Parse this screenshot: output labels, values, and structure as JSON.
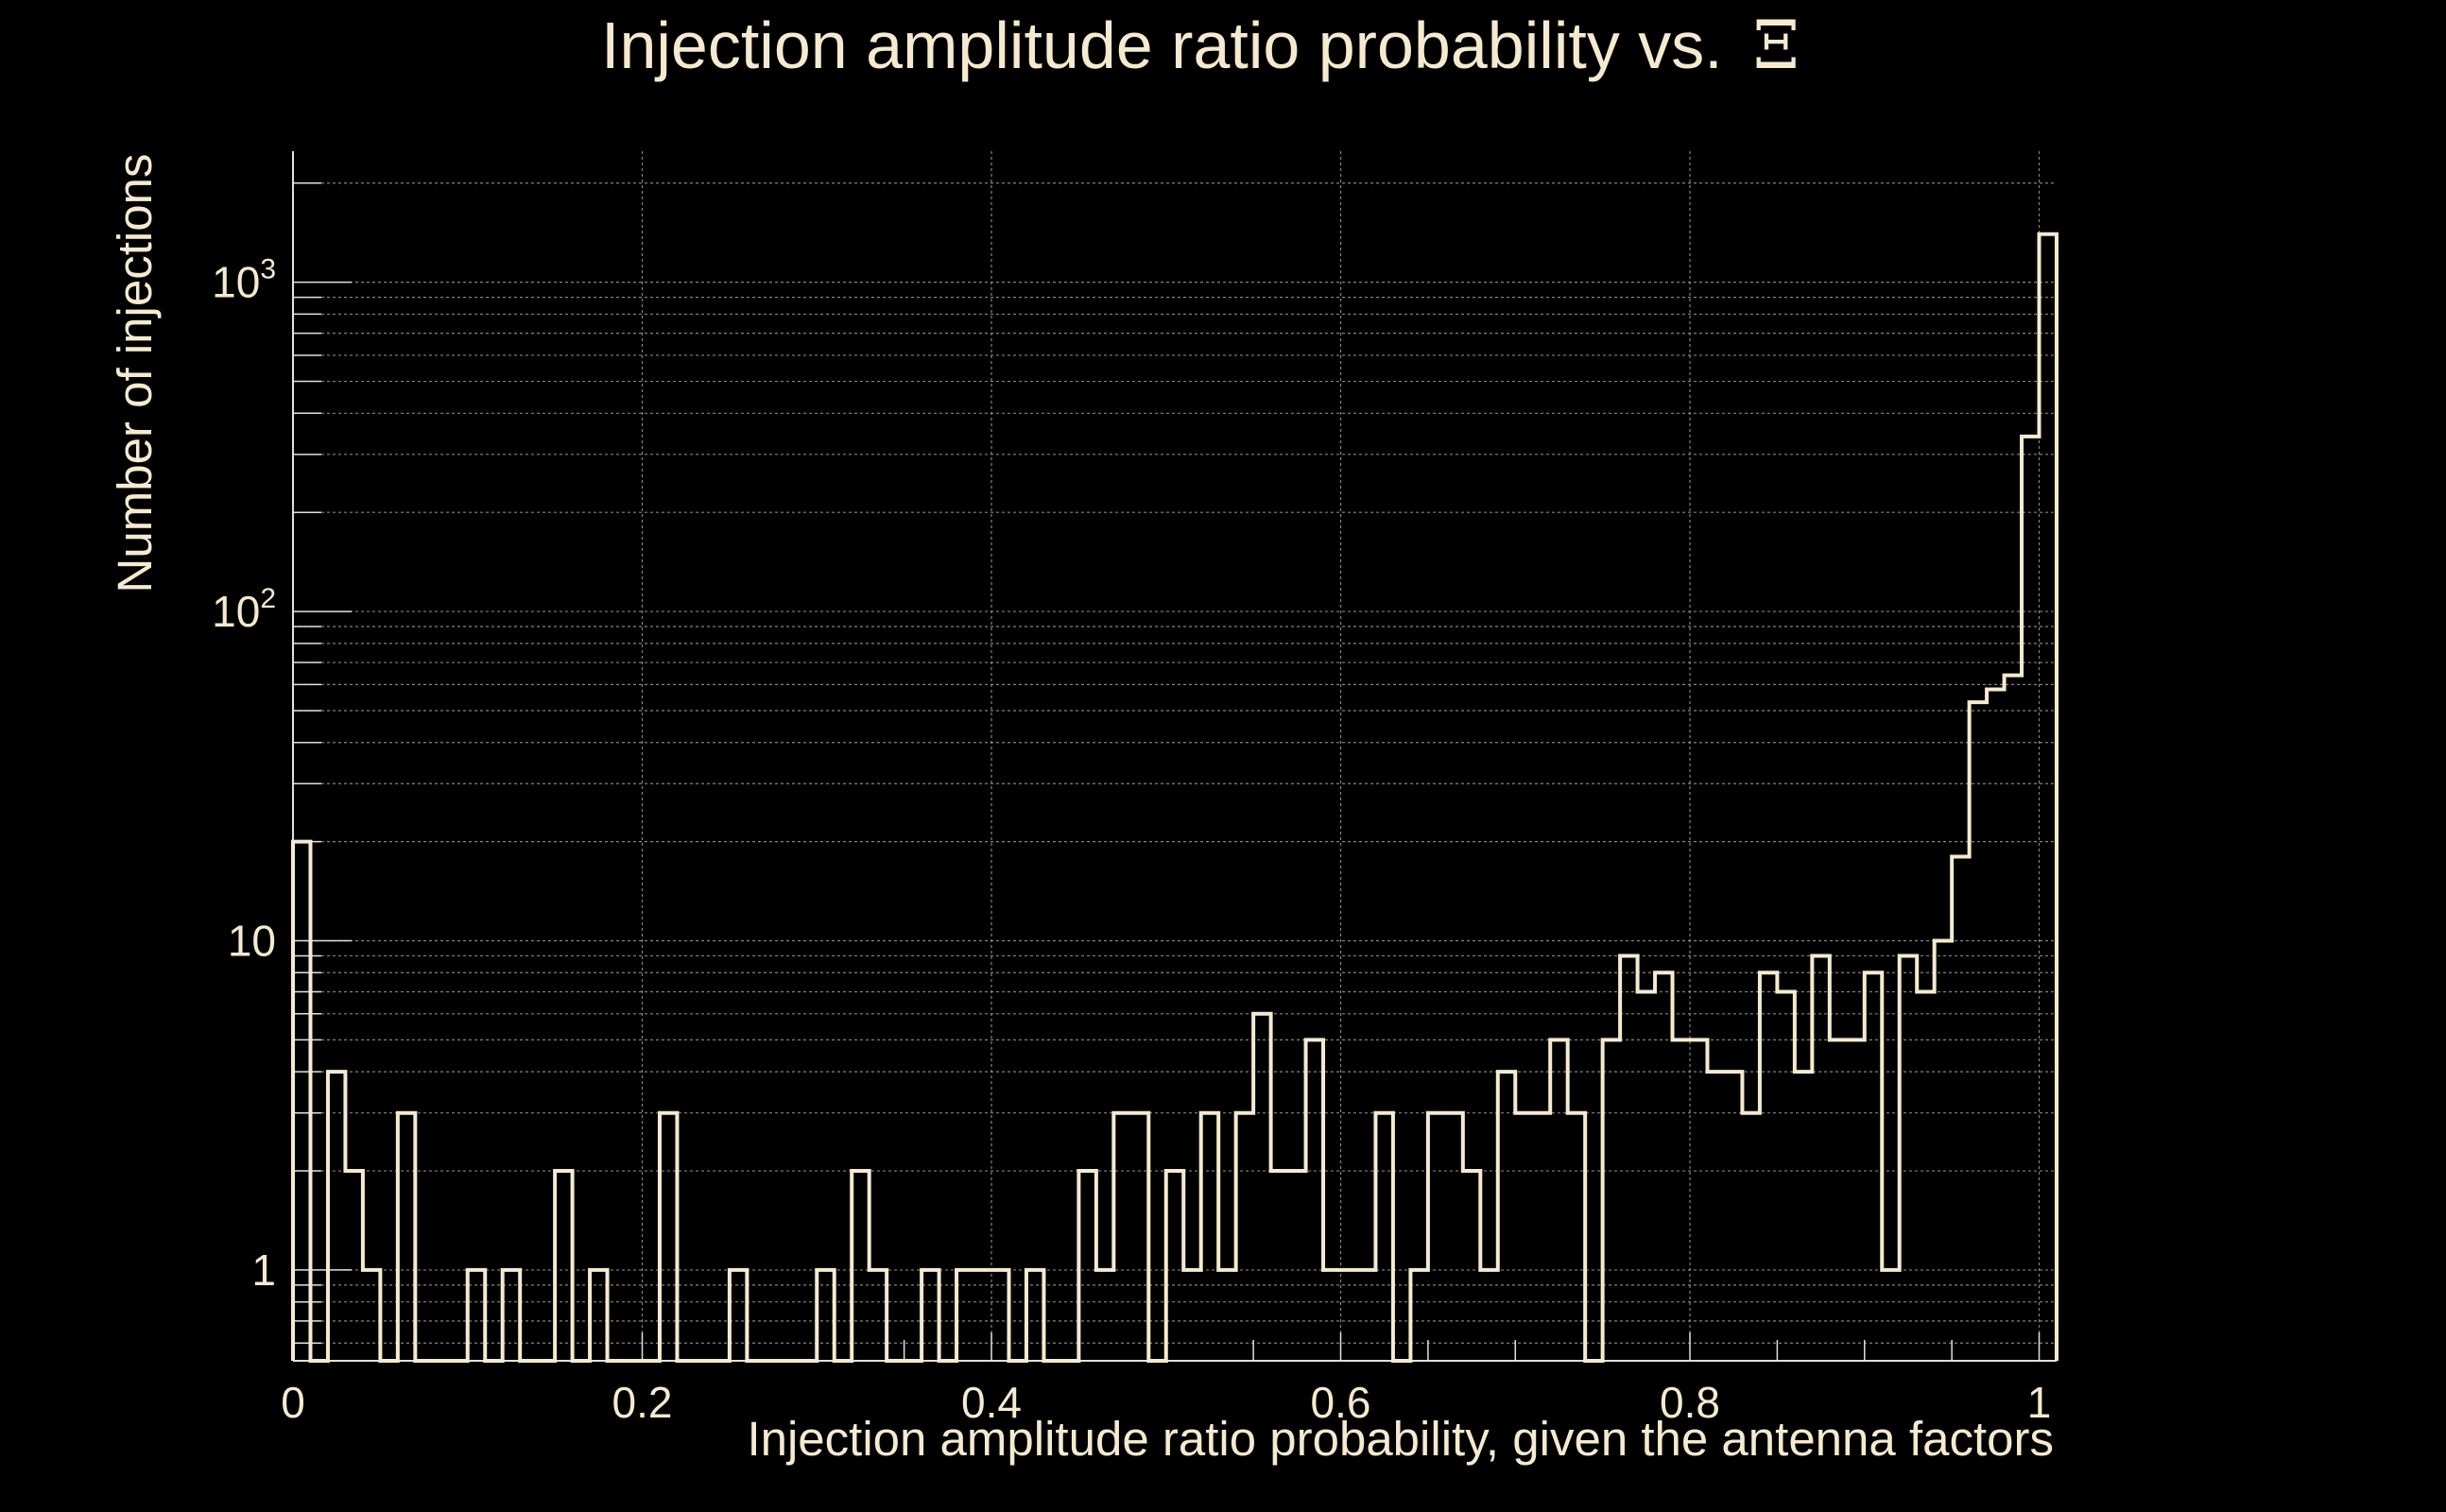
{
  "chart_data": {
    "type": "histogram-step",
    "title": "Injection amplitude ratio probability vs.",
    "title_symbol": "Ξ",
    "xlabel": "Injection amplitude ratio probability, given the antenna factors",
    "ylabel": "Number of injections",
    "xlim": [
      0,
      1.01
    ],
    "ylim": [
      0.53,
      2500
    ],
    "yscale": "log",
    "grid": true,
    "x_ticks": [
      0,
      0.2,
      0.4,
      0.6,
      0.8,
      1
    ],
    "x_tick_labels": [
      "0",
      "0.2",
      "0.4",
      "0.6",
      "0.8",
      "1"
    ],
    "y_ticks": [
      1,
      10,
      100,
      1000
    ],
    "y_tick_labels": [
      {
        "base": "1",
        "exp": ""
      },
      {
        "base": "10",
        "exp": ""
      },
      {
        "base": "10",
        "exp": "2"
      },
      {
        "base": "10",
        "exp": "3"
      }
    ],
    "bin_width": 0.01,
    "bins_start": 0,
    "counts": [
      20,
      0,
      4,
      2,
      1,
      0,
      3,
      0,
      0,
      0,
      1,
      0,
      1,
      0,
      0,
      2,
      0,
      1,
      0,
      0,
      0,
      3,
      0,
      0,
      0,
      1,
      0,
      0,
      0,
      0,
      1,
      0,
      2,
      1,
      0,
      0,
      1,
      0,
      1,
      1,
      1,
      0,
      1,
      0,
      0,
      2,
      1,
      3,
      3,
      0,
      2,
      1,
      3,
      1,
      3,
      6,
      2,
      2,
      5,
      1,
      1,
      1,
      3,
      0,
      1,
      3,
      3,
      2,
      1,
      4,
      3,
      3,
      5,
      3,
      0,
      5,
      9,
      7,
      8,
      5,
      5,
      4,
      4,
      3,
      8,
      7,
      4,
      9,
      5,
      5,
      8,
      1,
      9,
      7,
      10,
      18,
      53,
      58,
      64,
      340,
      1400
    ],
    "colors": {
      "background": "#000000",
      "line": "#f5ead0",
      "text": "#f5ead0",
      "grid": "#9a9a9a",
      "axis": "#e0e0e0"
    }
  }
}
